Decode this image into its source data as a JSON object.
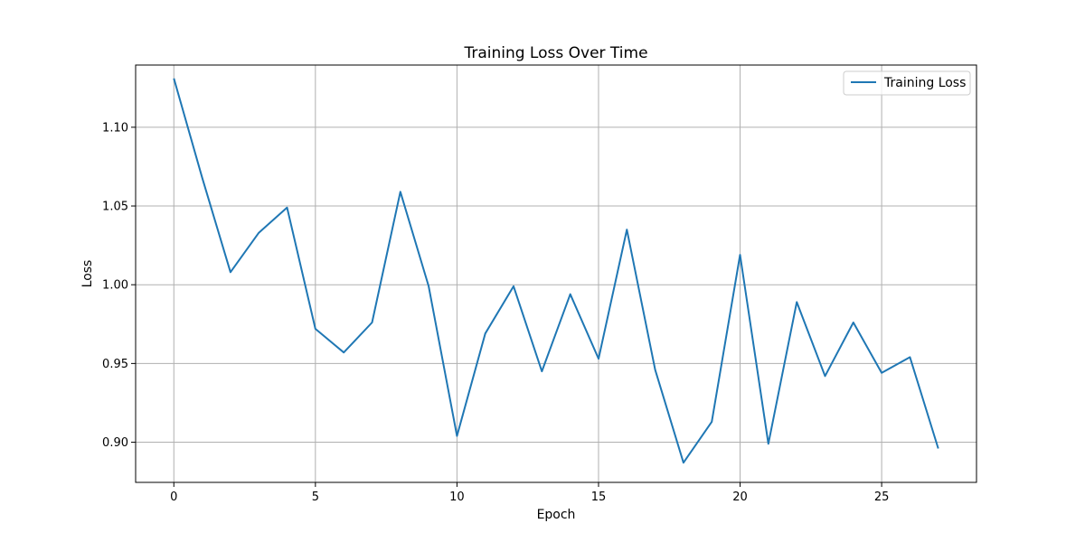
{
  "chart_data": {
    "type": "line",
    "title": "Training Loss Over Time",
    "xlabel": "Epoch",
    "ylabel": "Loss",
    "xlim": [
      -1.35,
      28.35
    ],
    "ylim": [
      0.8745,
      1.1395
    ],
    "xticks": [
      0,
      5,
      10,
      15,
      20,
      25
    ],
    "yticks": [
      0.9,
      0.95,
      1.0,
      1.05,
      1.1
    ],
    "ytick_labels": [
      "0.90",
      "0.95",
      "1.00",
      "1.05",
      "1.10"
    ],
    "grid": true,
    "legend": "upper right",
    "series": [
      {
        "name": "Training Loss",
        "color": "#1f77b4",
        "x": [
          0,
          1,
          2,
          3,
          4,
          5,
          6,
          7,
          8,
          9,
          10,
          11,
          12,
          13,
          14,
          15,
          16,
          17,
          18,
          19,
          20,
          21,
          22,
          23,
          24,
          25,
          26,
          27
        ],
        "values": [
          1.131,
          1.068,
          1.008,
          1.033,
          1.049,
          0.972,
          0.957,
          0.976,
          1.059,
          0.999,
          0.904,
          0.969,
          0.999,
          0.945,
          0.994,
          0.953,
          1.035,
          0.946,
          0.887,
          0.913,
          1.019,
          0.899,
          0.989,
          0.942,
          0.976,
          0.944,
          0.954,
          0.896
        ]
      }
    ]
  }
}
